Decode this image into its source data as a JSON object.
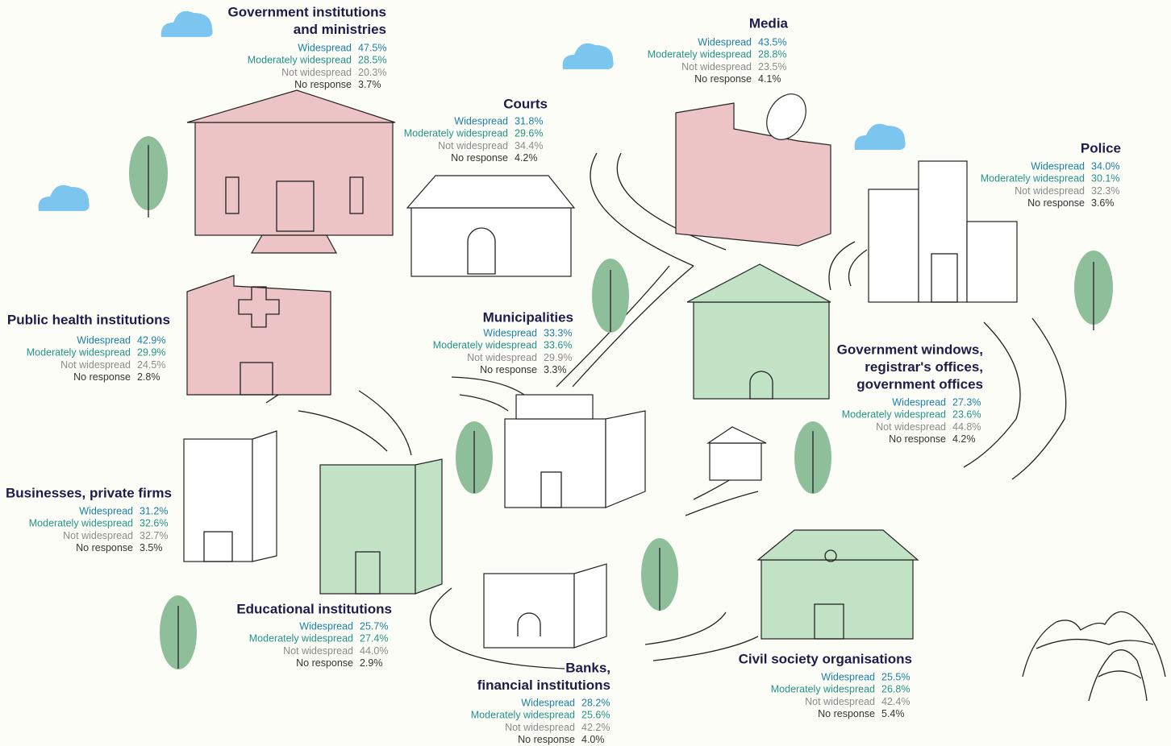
{
  "levels": [
    "Widespread",
    "Moderately widespread",
    "Not widespread",
    "No response"
  ],
  "institutions": [
    {
      "name": [
        "Government institutions",
        "and ministries"
      ],
      "values": [
        "47.5%",
        "28.5%",
        "20.3%",
        "3.7%"
      ]
    },
    {
      "name": [
        "Courts"
      ],
      "values": [
        "31.8%",
        "29.6%",
        "34.4%",
        "4.2%"
      ]
    },
    {
      "name": [
        "Media"
      ],
      "values": [
        "43.5%",
        "28.8%",
        "23.5%",
        "4.1%"
      ]
    },
    {
      "name": [
        "Police"
      ],
      "values": [
        "34.0%",
        "30.1%",
        "32.3%",
        "3.6%"
      ]
    },
    {
      "name": [
        "Public health institutions"
      ],
      "values": [
        "42.9%",
        "29.9%",
        "24.5%",
        "2.8%"
      ]
    },
    {
      "name": [
        "Municipalities"
      ],
      "values": [
        "33.3%",
        "33.6%",
        "29.9%",
        "3.3%"
      ]
    },
    {
      "name": [
        "Government windows,",
        "registrar's offices,",
        "government offices"
      ],
      "values": [
        "27.3%",
        "23.6%",
        "44.8%",
        "4.2%"
      ]
    },
    {
      "name": [
        "Businesses, private firms"
      ],
      "values": [
        "31.2%",
        "32.6%",
        "32.7%",
        "3.5%"
      ]
    },
    {
      "name": [
        "Educational institutions"
      ],
      "values": [
        "25.7%",
        "27.4%",
        "44.0%",
        "2.9%"
      ]
    },
    {
      "name": [
        "Banks,",
        "financial institutions"
      ],
      "values": [
        "28.2%",
        "25.6%",
        "42.2%",
        "4.0%"
      ]
    },
    {
      "name": [
        "Civil society organisations"
      ],
      "values": [
        "25.5%",
        "26.8%",
        "42.4%",
        "5.4%"
      ]
    }
  ]
}
